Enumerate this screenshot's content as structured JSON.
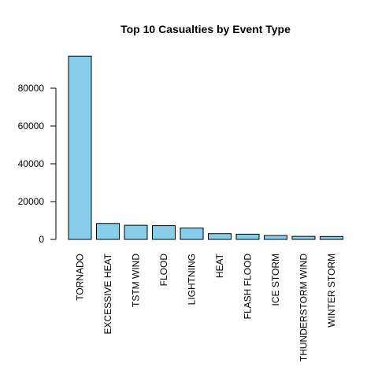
{
  "chart_data": {
    "type": "bar",
    "title": "Top 10 Casualties by Event Type",
    "xlabel": "",
    "ylabel": "",
    "categories": [
      "TORNADO",
      "EXCESSIVE HEAT",
      "TSTM WIND",
      "FLOOD",
      "LIGHTNING",
      "HEAT",
      "FLASH FLOOD",
      "ICE STORM",
      "THUNDERSTORM WIND",
      "WINTER STORM"
    ],
    "values": [
      96979,
      8428,
      7461,
      7259,
      6046,
      3037,
      2755,
      2064,
      1621,
      1527
    ],
    "yticks": [
      0,
      20000,
      40000,
      60000,
      80000
    ],
    "ylim": [
      0,
      100000
    ],
    "bar_color": "#87CEEB",
    "grid": false,
    "legend": "none"
  }
}
